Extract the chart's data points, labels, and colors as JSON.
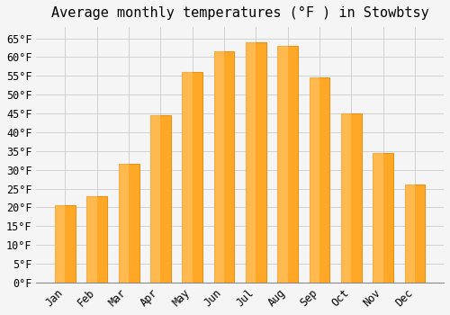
{
  "title": "Average monthly temperatures (°F ) in Stowbtsy",
  "months": [
    "Jan",
    "Feb",
    "Mar",
    "Apr",
    "May",
    "Jun",
    "Jul",
    "Aug",
    "Sep",
    "Oct",
    "Nov",
    "Dec"
  ],
  "values": [
    20.5,
    23.0,
    31.5,
    44.5,
    56.0,
    61.5,
    64.0,
    63.0,
    54.5,
    45.0,
    34.5,
    26.0
  ],
  "bar_color": "#FFA726",
  "bar_edge_color": "#E6951A",
  "background_color": "#f5f5f5",
  "plot_bg_color": "#f5f5f5",
  "grid_color": "#cccccc",
  "ylim": [
    0,
    68
  ],
  "yticks": [
    0,
    5,
    10,
    15,
    20,
    25,
    30,
    35,
    40,
    45,
    50,
    55,
    60,
    65
  ],
  "title_fontsize": 11,
  "tick_fontsize": 8.5,
  "font_family": "monospace",
  "bar_width": 0.65
}
